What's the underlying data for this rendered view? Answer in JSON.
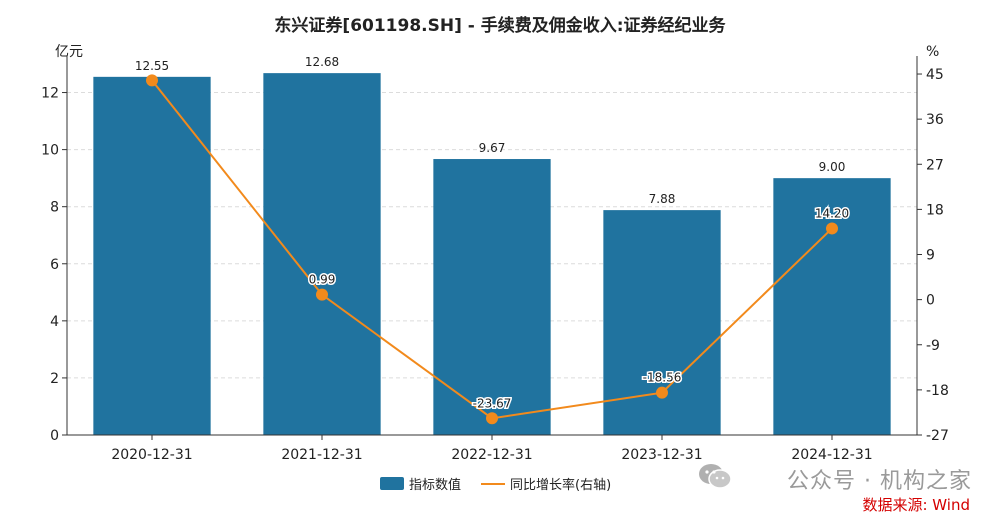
{
  "chart_data": {
    "type": "bar",
    "title": "东兴证券[601198.SH] - 手续费及佣金收入:证券经纪业务",
    "categories": [
      "2020-12-31",
      "2021-12-31",
      "2022-12-31",
      "2023-12-31",
      "2024-12-31"
    ],
    "series": [
      {
        "name": "指标数值",
        "type": "bar",
        "axis": "left",
        "values": [
          12.55,
          12.68,
          9.67,
          7.88,
          9.0
        ],
        "labels": [
          "12.55",
          "12.68",
          "9.67",
          "7.88",
          "9.00"
        ]
      },
      {
        "name": "同比增长率(右轴)",
        "type": "line",
        "axis": "right",
        "values": [
          43.74,
          0.99,
          -23.67,
          -18.56,
          14.2
        ],
        "labels": [
          "",
          "0.99",
          "-23.67",
          "-18.56",
          "14.20"
        ]
      }
    ],
    "ylabel_left": "亿元",
    "ylabel_right": "%",
    "ylim_left": [
      0,
      13
    ],
    "yticks_left": [
      0,
      2,
      4,
      6,
      8,
      10,
      12
    ],
    "ylim_right": [
      -27,
      47
    ],
    "yticks_right": [
      -27,
      -18,
      -9,
      0,
      9,
      18,
      27,
      36,
      45
    ],
    "grid": true,
    "legend_position": "bottom-center",
    "colors": {
      "bar": "#20739f",
      "line": "#f28a1c"
    }
  },
  "watermark": "公众号 · 机构之家",
  "source": "数据来源: Wind"
}
